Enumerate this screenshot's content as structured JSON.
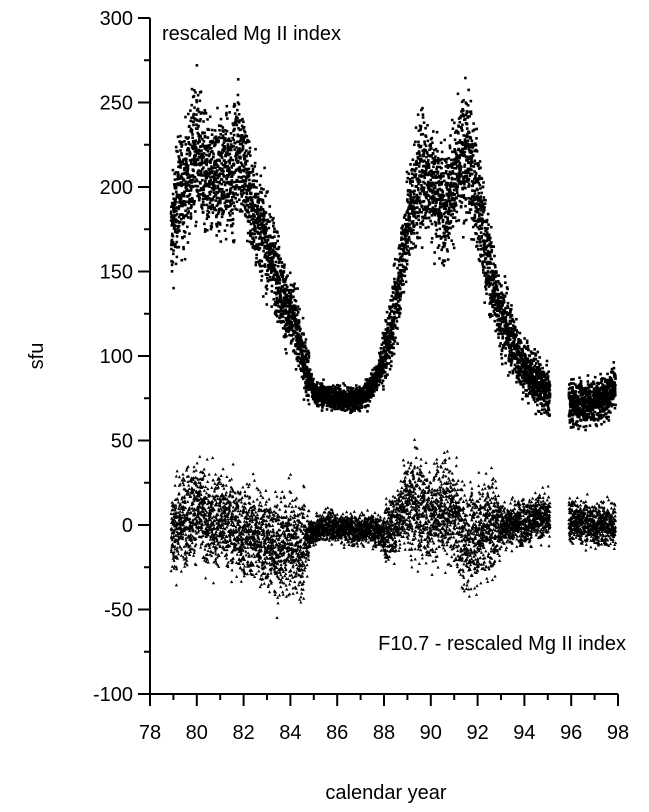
{
  "chart_data": {
    "type": "scatter",
    "title": "",
    "xlabel": "calendar year",
    "ylabel": "sfu",
    "xlim": [
      78,
      98
    ],
    "ylim": [
      -100,
      300
    ],
    "x_ticks": [
      "78",
      "80",
      "82",
      "84",
      "86",
      "88",
      "90",
      "92",
      "94",
      "96",
      "98"
    ],
    "y_ticks": [
      "-100",
      "-50",
      "0",
      "50",
      "100",
      "150",
      "200",
      "250",
      "300"
    ],
    "grid": false,
    "annotations": [
      {
        "text": "rescaled Mg II index",
        "position": "top-left"
      },
      {
        "text": "F10.7 - rescaled Mg II index",
        "position": "bottom-right"
      }
    ],
    "series": [
      {
        "marker": "square",
        "x_range": [
          78.9,
          97.9
        ],
        "gap": [
          95.1,
          95.9
        ],
        "values": [
          [
            78.9,
            170
          ],
          [
            79.2,
            195
          ],
          [
            79.5,
            200
          ],
          [
            79.8,
            215
          ],
          [
            80.0,
            225
          ],
          [
            80.3,
            210
          ],
          [
            80.6,
            200
          ],
          [
            80.9,
            205
          ],
          [
            81.2,
            210
          ],
          [
            81.5,
            205
          ],
          [
            81.8,
            225
          ],
          [
            82.1,
            205
          ],
          [
            82.4,
            185
          ],
          [
            82.7,
            180
          ],
          [
            83.0,
            165
          ],
          [
            83.3,
            155
          ],
          [
            83.6,
            140
          ],
          [
            83.9,
            125
          ],
          [
            84.2,
            120
          ],
          [
            84.5,
            100
          ],
          [
            84.8,
            88
          ],
          [
            85.0,
            78
          ],
          [
            85.5,
            76
          ],
          [
            86.0,
            75
          ],
          [
            86.5,
            74
          ],
          [
            87.0,
            75
          ],
          [
            87.3,
            78
          ],
          [
            87.6,
            85
          ],
          [
            87.9,
            95
          ],
          [
            88.2,
            110
          ],
          [
            88.5,
            130
          ],
          [
            88.8,
            160
          ],
          [
            89.1,
            185
          ],
          [
            89.4,
            200
          ],
          [
            89.7,
            210
          ],
          [
            90.0,
            205
          ],
          [
            90.3,
            195
          ],
          [
            90.6,
            190
          ],
          [
            90.9,
            200
          ],
          [
            91.2,
            210
          ],
          [
            91.5,
            220
          ],
          [
            91.8,
            210
          ],
          [
            92.1,
            185
          ],
          [
            92.4,
            160
          ],
          [
            92.7,
            140
          ],
          [
            93.0,
            125
          ],
          [
            93.3,
            115
          ],
          [
            93.6,
            105
          ],
          [
            93.9,
            95
          ],
          [
            94.2,
            90
          ],
          [
            94.5,
            85
          ],
          [
            94.8,
            80
          ],
          [
            95.0,
            78
          ],
          [
            96.0,
            72
          ],
          [
            96.5,
            72
          ],
          [
            97.0,
            73
          ],
          [
            97.5,
            75
          ],
          [
            97.9,
            85
          ]
        ]
      },
      {
        "marker": "triangle",
        "x_range": [
          78.9,
          97.9
        ],
        "gap": [
          95.1,
          95.9
        ],
        "values": [
          [
            78.9,
            -5
          ],
          [
            79.5,
            5
          ],
          [
            80.0,
            10
          ],
          [
            80.5,
            0
          ],
          [
            81.0,
            5
          ],
          [
            81.5,
            0
          ],
          [
            82.0,
            -5
          ],
          [
            82.5,
            -5
          ],
          [
            83.0,
            -10
          ],
          [
            83.5,
            -15
          ],
          [
            84.0,
            -10
          ],
          [
            84.5,
            -15
          ],
          [
            84.8,
            -5
          ],
          [
            85.5,
            0
          ],
          [
            86.5,
            -2
          ],
          [
            87.5,
            -3
          ],
          [
            88.0,
            -5
          ],
          [
            88.5,
            0
          ],
          [
            89.0,
            15
          ],
          [
            89.5,
            10
          ],
          [
            90.0,
            5
          ],
          [
            90.5,
            10
          ],
          [
            91.0,
            5
          ],
          [
            91.5,
            -10
          ],
          [
            92.0,
            -5
          ],
          [
            92.5,
            0
          ],
          [
            93.0,
            0
          ],
          [
            94.0,
            2
          ],
          [
            95.0,
            5
          ],
          [
            96.0,
            3
          ],
          [
            97.0,
            0
          ],
          [
            97.9,
            0
          ]
        ]
      }
    ]
  }
}
